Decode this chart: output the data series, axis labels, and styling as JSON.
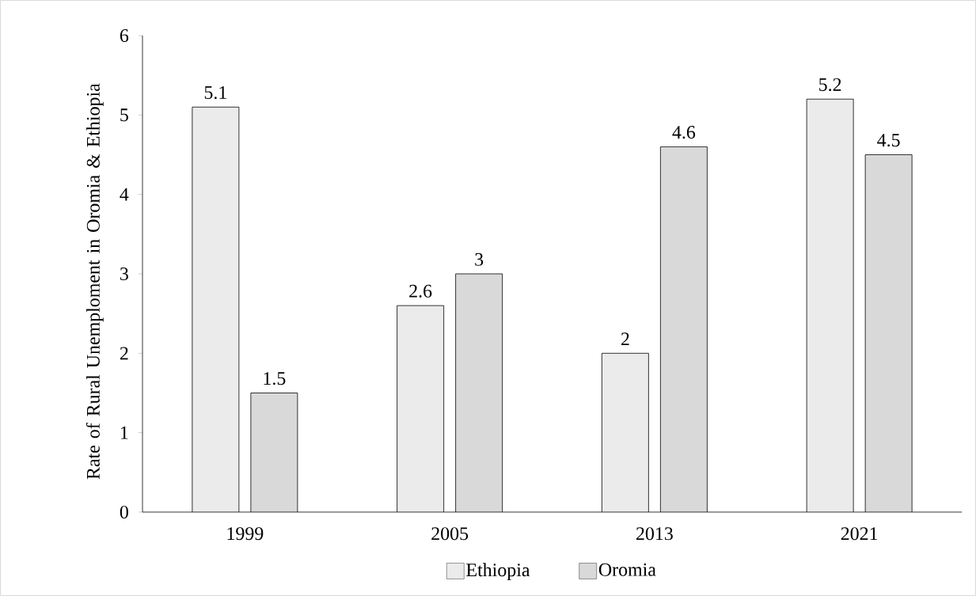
{
  "chart_data": {
    "type": "bar",
    "ylabel": "Rate of Rural Unemploment in Oromia & Ethiopia",
    "categories": [
      "1999",
      "2005",
      "2013",
      "2021"
    ],
    "series": [
      {
        "name": "Ethiopia",
        "color": "#ebebeb",
        "values": [
          5.1,
          2.6,
          2,
          5.2
        ]
      },
      {
        "name": "Oromia",
        "color": "#d9d9d9",
        "values": [
          1.5,
          3,
          4.6,
          4.5
        ]
      }
    ],
    "ylim": [
      0,
      6
    ],
    "yticks": [
      0,
      1,
      2,
      3,
      4,
      5,
      6
    ],
    "grid": false,
    "legend": "bottom",
    "data_labels": true
  }
}
